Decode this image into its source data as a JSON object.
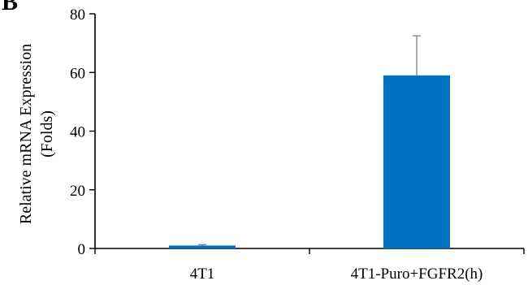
{
  "panel_label": "B",
  "chart_data": {
    "type": "bar",
    "categories": [
      "4T1",
      "4T1-Puro+FGFR2(h)"
    ],
    "values": [
      1.0,
      59.0
    ],
    "error_upper": [
      0.3,
      13.5
    ],
    "ylabel": "Relative mRNA Expression",
    "ylabel_line2": "(Folds)",
    "ylim": [
      0,
      80
    ],
    "yticks": [
      0,
      20,
      40,
      60,
      80
    ],
    "bar_color": "#0070C0",
    "error_bar_color": "#7F7F7F",
    "grid": false,
    "legend": "none"
  }
}
